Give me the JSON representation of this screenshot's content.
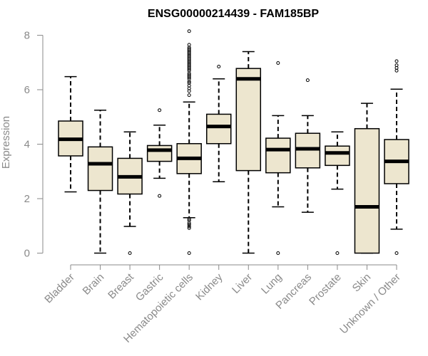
{
  "chart_data": {
    "type": "box",
    "title": "ENSG00000214439 - FAM185BP",
    "ylabel": "Expression",
    "xlabel": "",
    "ylim": [
      0,
      8.2
    ],
    "yticks": [
      0,
      2,
      4,
      6,
      8
    ],
    "box_fill": "#ede6cf",
    "categories": [
      "Bladder",
      "Brain",
      "Breast",
      "Gastric",
      "Hematopoietic cells",
      "Kidney",
      "Liver",
      "Lung",
      "Pancreas",
      "Prostate",
      "Skin",
      "Unknown / Other"
    ],
    "boxes": [
      {
        "whisker_low": 2.25,
        "q1": 3.57,
        "median": 4.18,
        "q3": 4.85,
        "whisker_high": 6.48,
        "outliers": []
      },
      {
        "whisker_low": 0.0,
        "q1": 2.3,
        "median": 3.28,
        "q3": 3.9,
        "whisker_high": 5.25,
        "outliers": []
      },
      {
        "whisker_low": 0.98,
        "q1": 2.17,
        "median": 2.8,
        "q3": 3.48,
        "whisker_high": 4.45,
        "outliers": [
          0.0
        ]
      },
      {
        "whisker_low": 2.75,
        "q1": 3.37,
        "median": 3.78,
        "q3": 3.95,
        "whisker_high": 4.7,
        "outliers": [
          2.1,
          5.25
        ]
      },
      {
        "whisker_low": 1.3,
        "q1": 2.92,
        "median": 3.48,
        "q3": 4.02,
        "whisker_high": 5.55,
        "outliers": [
          0.0,
          0.92,
          0.98,
          1.05,
          1.1,
          1.2,
          1.25,
          5.8,
          5.95,
          6.05,
          6.15,
          6.25,
          6.3,
          6.4,
          6.45,
          6.5,
          6.55,
          6.6,
          6.7,
          6.75,
          6.8,
          6.85,
          6.9,
          6.95,
          7.0,
          7.05,
          7.1,
          7.15,
          7.2,
          7.25,
          7.3,
          7.35,
          7.4,
          7.45,
          7.5,
          7.55,
          7.65,
          8.15
        ]
      },
      {
        "whisker_low": 2.62,
        "q1": 4.02,
        "median": 4.65,
        "q3": 5.1,
        "whisker_high": 6.4,
        "outliers": [
          6.85
        ]
      },
      {
        "whisker_low": 0.0,
        "q1": 3.03,
        "median": 6.4,
        "q3": 6.78,
        "whisker_high": 7.4,
        "outliers": []
      },
      {
        "whisker_low": 1.7,
        "q1": 2.95,
        "median": 3.8,
        "q3": 4.22,
        "whisker_high": 5.05,
        "outliers": [
          0.0,
          6.98
        ]
      },
      {
        "whisker_low": 1.5,
        "q1": 3.13,
        "median": 3.83,
        "q3": 4.4,
        "whisker_high": 5.05,
        "outliers": [
          6.35
        ]
      },
      {
        "whisker_low": 2.35,
        "q1": 3.22,
        "median": 3.68,
        "q3": 3.93,
        "whisker_high": 4.45,
        "outliers": [
          0.0
        ]
      },
      {
        "whisker_low": 0.0,
        "q1": 0.0,
        "median": 1.7,
        "q3": 4.57,
        "whisker_high": 5.5,
        "outliers": []
      },
      {
        "whisker_low": 0.88,
        "q1": 2.55,
        "median": 3.37,
        "q3": 4.17,
        "whisker_high": 6.02,
        "outliers": [
          0.0,
          6.7,
          6.8,
          6.9,
          7.05
        ]
      }
    ]
  }
}
